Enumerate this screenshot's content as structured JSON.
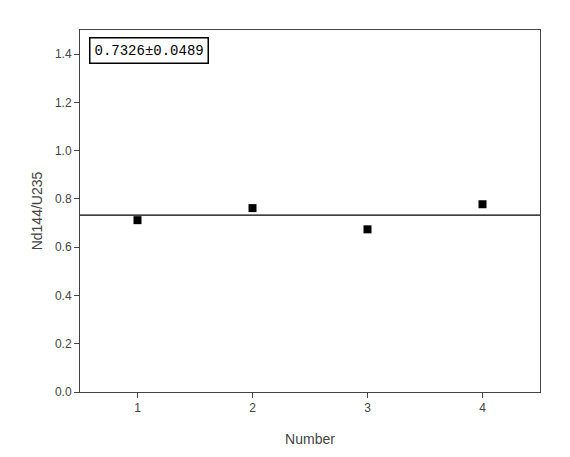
{
  "chart_data": {
    "type": "scatter",
    "x": [
      1,
      2,
      3,
      4
    ],
    "values": [
      0.712,
      0.762,
      0.674,
      0.778
    ],
    "mean_line": 0.7326,
    "annotations": [
      "0.7326±0.0489"
    ],
    "xlabel": "Number",
    "ylabel": "Nd144/U235",
    "xlim": [
      0.5,
      4.5
    ],
    "ylim": [
      0.0,
      1.5
    ],
    "xticks": [
      1,
      2,
      3,
      4
    ],
    "yticks": [
      {
        "value": 0.0,
        "label": "0.0"
      },
      0.2,
      0.4,
      0.6,
      0.8,
      {
        "value": 1.0,
        "label": "1.0"
      },
      1.2,
      1.4
    ],
    "color": "#000000",
    "marker": "square",
    "grid": false
  }
}
